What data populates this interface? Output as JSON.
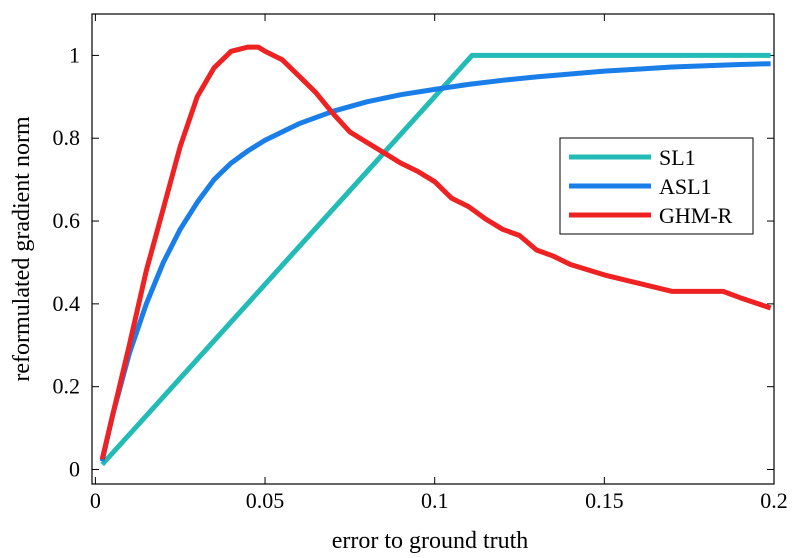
{
  "chart_data": {
    "type": "line",
    "xlabel": "error to ground truth",
    "ylabel": "reformulated gradient norm",
    "xlim": [
      -0.001,
      0.2
    ],
    "ylim": [
      -0.035,
      1.1
    ],
    "x_ticks": [
      0,
      0.05,
      0.1,
      0.15,
      0.2
    ],
    "x_tick_labels": [
      "0",
      "0.05",
      "0.1",
      "0.15",
      "0.2"
    ],
    "y_ticks": [
      0,
      0.2,
      0.4,
      0.6,
      0.8,
      1
    ],
    "y_tick_labels": [
      "0",
      "0.2",
      "0.4",
      "0.6",
      "0.8",
      "1"
    ],
    "grid": false,
    "legend_position": "right",
    "series": [
      {
        "name": "SL1",
        "color": "#22bbb5",
        "x": [
          0.002,
          0.111,
          0.199
        ],
        "y": [
          0.012,
          1.0,
          1.0
        ]
      },
      {
        "name": "ASL1",
        "color": "#1a7ee8",
        "x": [
          0.002,
          0.005,
          0.01,
          0.015,
          0.02,
          0.025,
          0.03,
          0.035,
          0.04,
          0.045,
          0.05,
          0.055,
          0.06,
          0.07,
          0.08,
          0.09,
          0.1,
          0.11,
          0.12,
          0.13,
          0.14,
          0.15,
          0.16,
          0.17,
          0.18,
          0.19,
          0.199
        ],
        "y": [
          0.02,
          0.13,
          0.28,
          0.4,
          0.5,
          0.58,
          0.645,
          0.7,
          0.74,
          0.77,
          0.795,
          0.815,
          0.835,
          0.865,
          0.888,
          0.905,
          0.918,
          0.93,
          0.94,
          0.948,
          0.955,
          0.962,
          0.967,
          0.972,
          0.975,
          0.978,
          0.98
        ]
      },
      {
        "name": "GHM-R",
        "color": "#ee2222",
        "x": [
          0.002,
          0.01,
          0.015,
          0.02,
          0.025,
          0.03,
          0.035,
          0.04,
          0.045,
          0.048,
          0.05,
          0.055,
          0.06,
          0.065,
          0.07,
          0.075,
          0.08,
          0.085,
          0.09,
          0.095,
          0.1,
          0.105,
          0.11,
          0.115,
          0.12,
          0.125,
          0.13,
          0.135,
          0.14,
          0.15,
          0.16,
          0.17,
          0.18,
          0.185,
          0.19,
          0.199
        ],
        "y": [
          0.025,
          0.3,
          0.48,
          0.63,
          0.78,
          0.9,
          0.97,
          1.01,
          1.02,
          1.02,
          1.01,
          0.99,
          0.95,
          0.91,
          0.86,
          0.815,
          0.79,
          0.765,
          0.74,
          0.72,
          0.695,
          0.655,
          0.635,
          0.605,
          0.58,
          0.565,
          0.53,
          0.515,
          0.495,
          0.47,
          0.45,
          0.43,
          0.43,
          0.43,
          0.415,
          0.39
        ]
      }
    ]
  }
}
